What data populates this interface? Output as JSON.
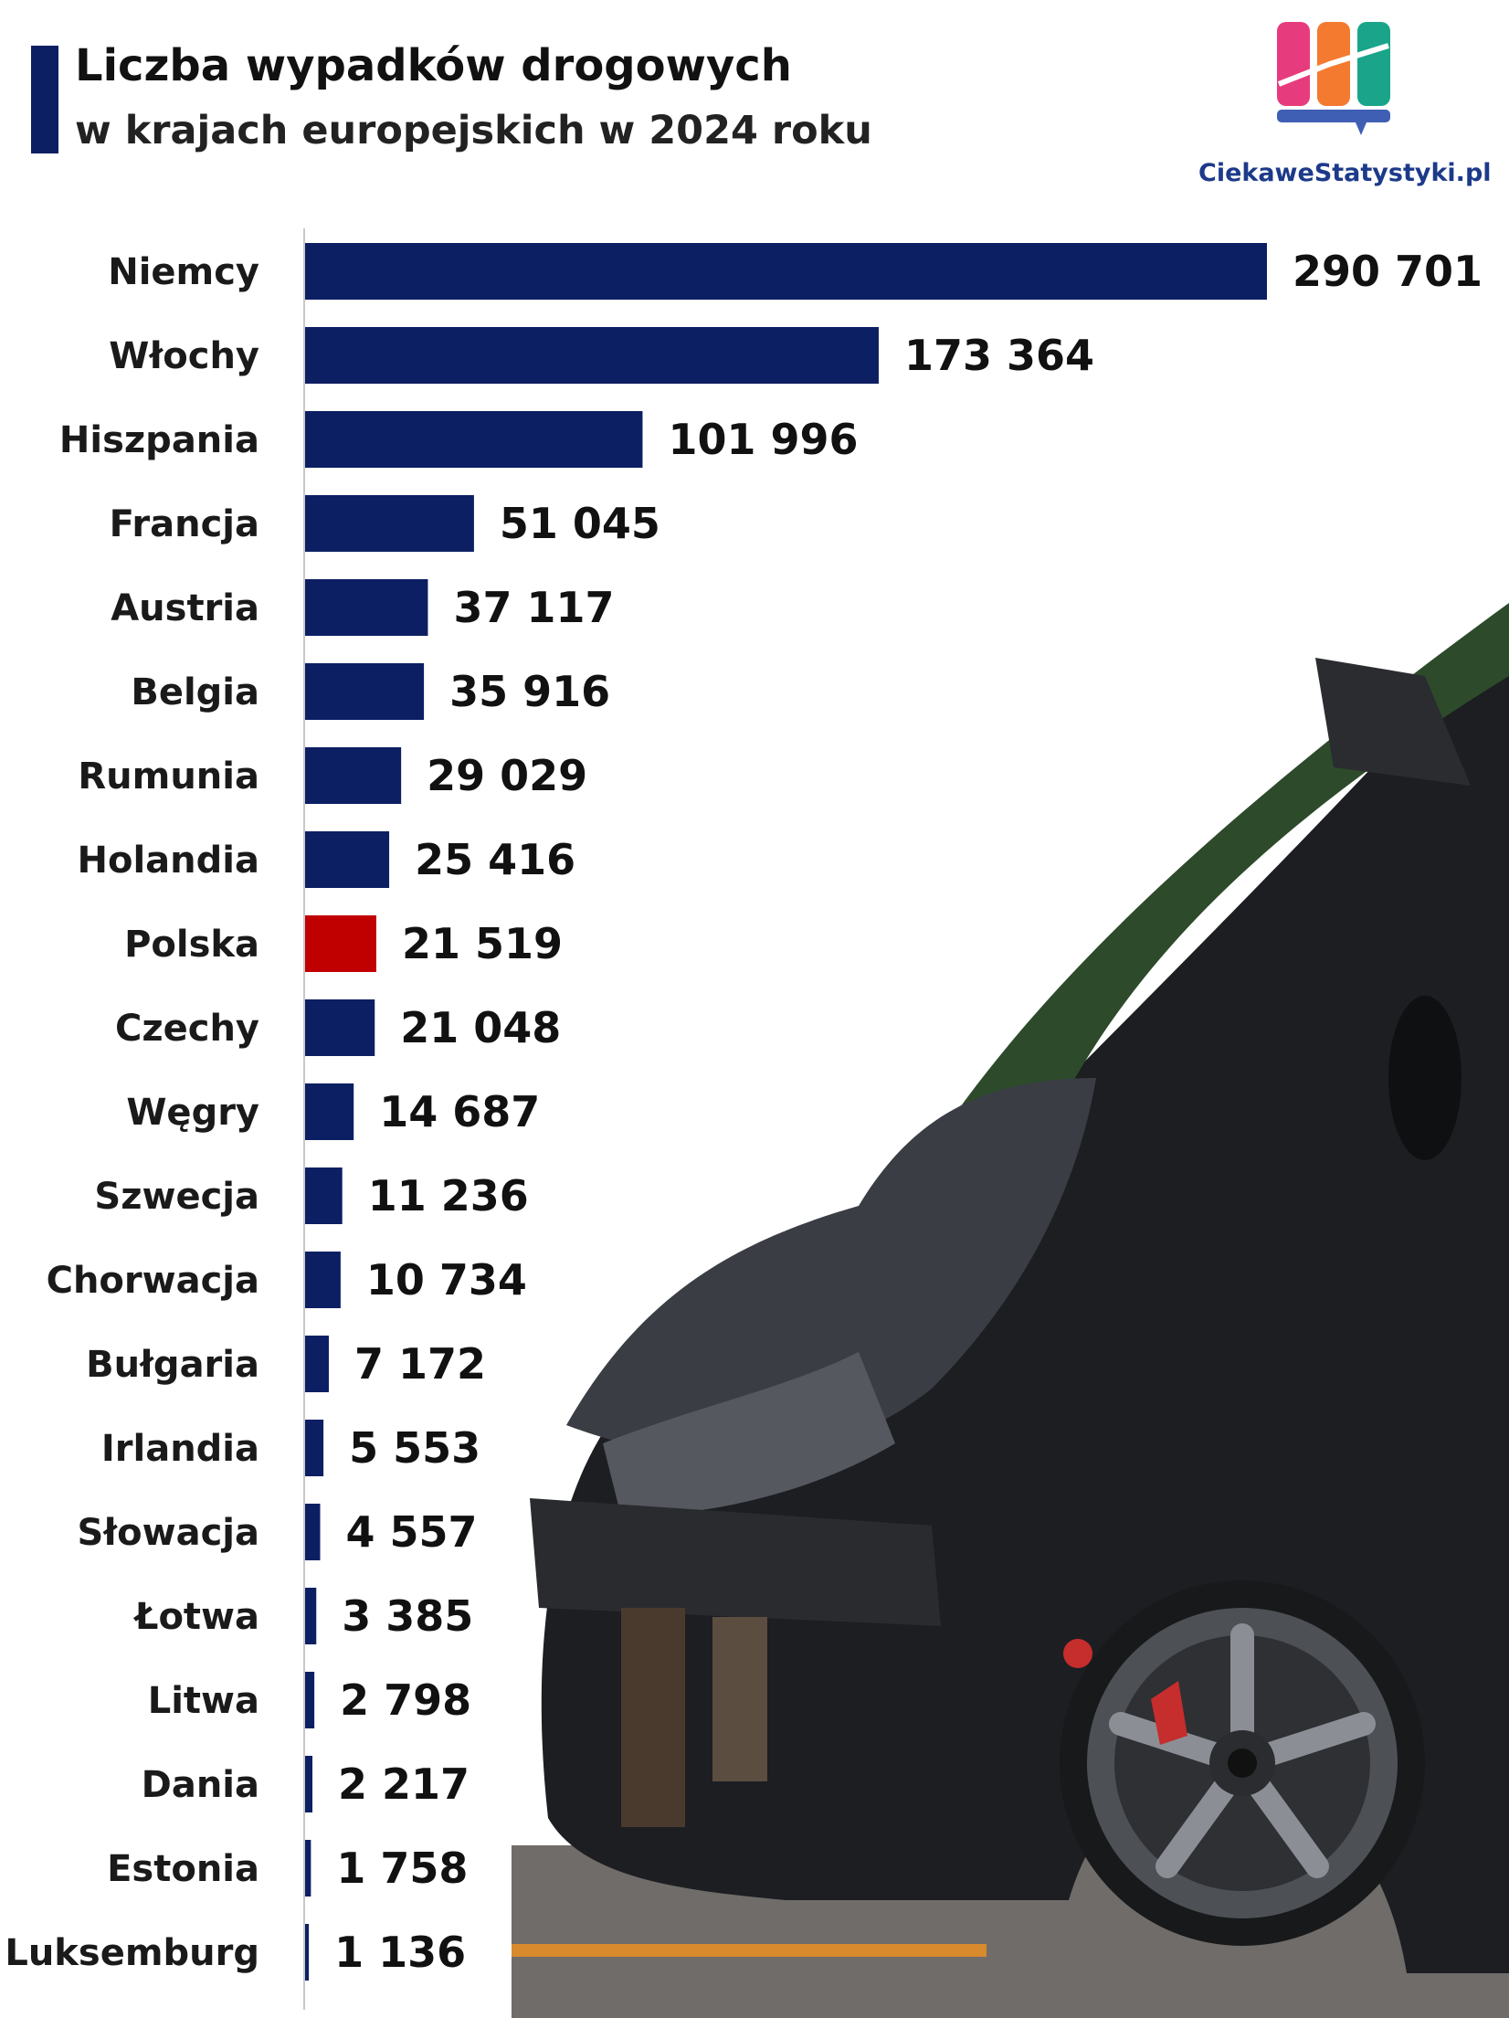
{
  "header": {
    "title": "Liczba wypadków drogowych",
    "subtitle": "w krajach europejskich w 2024 roku",
    "brand": "CiekaweStatystyki.pl"
  },
  "colors": {
    "bar": "#0d1f63",
    "highlight": "#c00000",
    "accent": "#0d1f63"
  },
  "chart_data": {
    "type": "bar",
    "orientation": "horizontal",
    "title": "Liczba wypadków drogowych",
    "subtitle": "w krajach europejskich w 2024 roku",
    "categories": [
      "Niemcy",
      "Włochy",
      "Hiszpania",
      "Francja",
      "Austria",
      "Belgia",
      "Rumunia",
      "Holandia",
      "Polska",
      "Czechy",
      "Węgry",
      "Szwecja",
      "Chorwacja",
      "Bułgaria",
      "Irlandia",
      "Słowacja",
      "Łotwa",
      "Litwa",
      "Dania",
      "Estonia",
      "Luksemburg"
    ],
    "values": [
      290701,
      173364,
      101996,
      51045,
      37117,
      35916,
      29029,
      25416,
      21519,
      21048,
      14687,
      11236,
      10734,
      7172,
      5553,
      4557,
      3385,
      2798,
      2217,
      1758,
      1136
    ],
    "value_labels": [
      "290 701",
      "173 364",
      "101 996",
      "51 045",
      "37 117",
      "35 916",
      "29 029",
      "25 416",
      "21 519",
      "21 048",
      "14 687",
      "11 236",
      "10 734",
      "7 172",
      "5 553",
      "4 557",
      "3 385",
      "2 798",
      "2 217",
      "1 758",
      "1 136"
    ],
    "highlight": "Polska",
    "xlim": [
      0,
      290701
    ],
    "grid": false,
    "legend": "none"
  }
}
